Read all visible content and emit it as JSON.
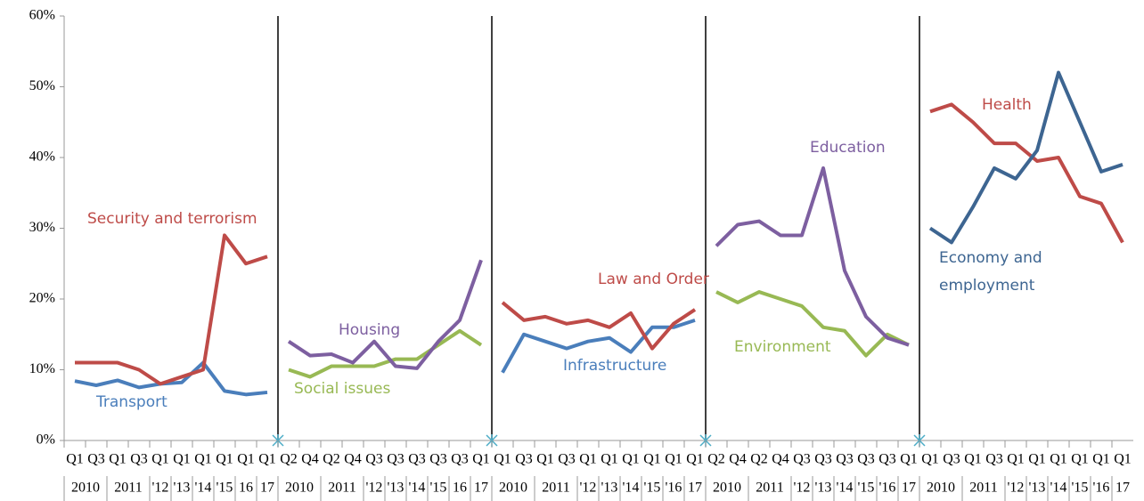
{
  "chart_data": {
    "type": "line",
    "ylim": [
      0,
      60
    ],
    "yticks": [
      {
        "value": 0,
        "label": "0%"
      },
      {
        "value": 10,
        "label": "10%"
      },
      {
        "value": 20,
        "label": "20%"
      },
      {
        "value": 30,
        "label": "30%"
      },
      {
        "value": 40,
        "label": "40%"
      },
      {
        "value": 50,
        "label": "50%"
      },
      {
        "value": 60,
        "label": "60%"
      }
    ],
    "grid": false,
    "panels": [
      {
        "categories": [
          "Q1",
          "Q3",
          "Q1",
          "Q3",
          "Q1",
          "Q1",
          "Q1",
          "Q1",
          "Q1",
          "Q1"
        ],
        "years": [
          "2010",
          "2011",
          "'12",
          "'13",
          "'14",
          "'15",
          "16",
          "17"
        ],
        "series": [
          {
            "name": "Transport",
            "color": "#4a7ebb",
            "values": [
              8.4,
              7.8,
              8.5,
              7.5,
              8.0,
              8.2,
              11.0,
              7.0,
              6.5,
              6.8
            ]
          },
          {
            "name": "Security and terrorism",
            "color": "#be4b48",
            "values": [
              11,
              11,
              11,
              10,
              8,
              9,
              10,
              29,
              25,
              26
            ]
          }
        ]
      },
      {
        "categories": [
          "Q2",
          "Q4",
          "Q2",
          "Q4",
          "Q3",
          "Q3",
          "Q3",
          "Q3",
          "Q3",
          "Q1"
        ],
        "years": [
          "2010",
          "2011",
          "'12",
          "'13",
          "'14",
          "'15",
          "16",
          "17"
        ],
        "series": [
          {
            "name": "Social issues",
            "color": "#98b954",
            "values": [
              10,
              9,
              10.5,
              10.5,
              10.5,
              11.5,
              11.5,
              13.5,
              15.5,
              13.5
            ]
          },
          {
            "name": "Housing",
            "color": "#7d5fa0",
            "values": [
              14,
              12,
              12.2,
              11,
              14,
              10.5,
              10.2,
              14,
              17,
              25.5
            ]
          }
        ]
      },
      {
        "categories": [
          "Q1",
          "Q3",
          "Q1",
          "Q3",
          "Q1",
          "Q1",
          "Q1",
          "Q1",
          "Q1",
          "Q1"
        ],
        "years": [
          "2010",
          "2011",
          "'12",
          "'13",
          "'14",
          "'15",
          "'16",
          "17"
        ],
        "series": [
          {
            "name": "Infrastructure",
            "color": "#4a7ebb",
            "values": [
              9.6,
              15,
              14,
              13,
              14,
              14.5,
              12.5,
              16,
              16,
              17
            ]
          },
          {
            "name": "Law and Order",
            "color": "#be4b48",
            "values": [
              19.5,
              17,
              17.5,
              16.5,
              17,
              16,
              18,
              13,
              16.5,
              18.5
            ]
          }
        ]
      },
      {
        "categories": [
          "Q2",
          "Q4",
          "Q2",
          "Q4",
          "Q3",
          "Q3",
          "Q3",
          "Q3",
          "Q3",
          "Q1"
        ],
        "years": [
          "2010",
          "2011",
          "'12",
          "'13",
          "'14",
          "'15",
          "'16",
          "17"
        ],
        "series": [
          {
            "name": "Environment",
            "color": "#98b954",
            "values": [
              21,
              19.5,
              21,
              20,
              19,
              16,
              15.5,
              12,
              15,
              13.5
            ]
          },
          {
            "name": "Education",
            "color": "#7d5fa0",
            "values": [
              27.5,
              30.5,
              31,
              29,
              29,
              38.5,
              24,
              17.5,
              14.5,
              13.5
            ]
          }
        ]
      },
      {
        "categories": [
          "Q1",
          "Q3",
          "Q1",
          "Q3",
          "Q1",
          "Q1",
          "Q1",
          "Q1",
          "Q1",
          "Q1"
        ],
        "years": [
          "2010",
          "2011",
          "'12",
          "'13",
          "'14",
          "'15",
          "'16",
          "17"
        ],
        "series": [
          {
            "name": "Health",
            "color": "#be4b48",
            "values": [
              46.5,
              47.5,
              45,
              42,
              42,
              39.5,
              40,
              34.5,
              33.5,
              28
            ]
          },
          {
            "name": "Economy and employment",
            "color": "#3d6591",
            "values": [
              30,
              28,
              33,
              38.5,
              37,
              41,
              52,
              45,
              38,
              39
            ]
          }
        ]
      }
    ]
  }
}
